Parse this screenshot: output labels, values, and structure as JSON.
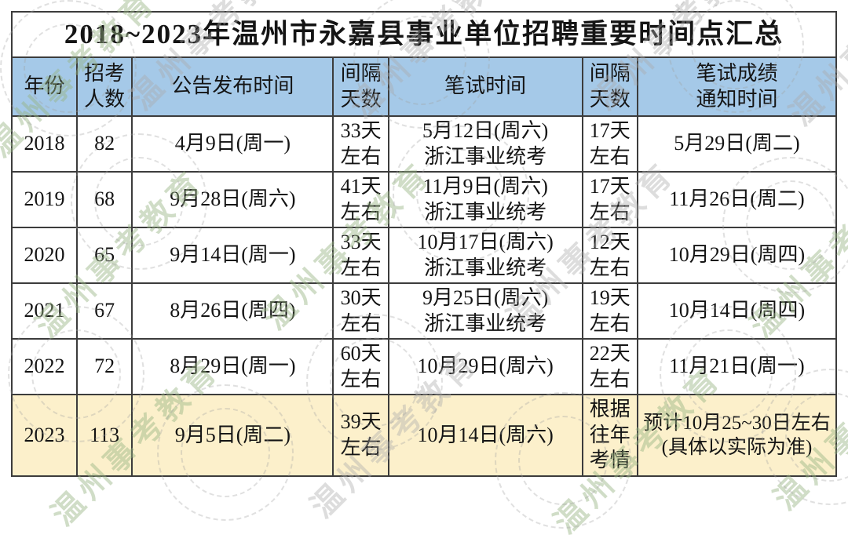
{
  "title": "2018~2023年温州市永嘉县事业单位招聘重要时间点汇总",
  "watermark_text": "温州事考教育",
  "colors": {
    "header_bg": "#a5c9e8",
    "highlight_bg": "#fcf0cb",
    "border": "#3c3c3c"
  },
  "table": {
    "headers": [
      "年份",
      "招考\n人数",
      "公告发布时间",
      "间隔\n天数",
      "笔试时间",
      "间隔\n天数",
      "笔试成绩\n通知时间"
    ],
    "rows": [
      {
        "year": "2018",
        "count": "82",
        "announce": "4月9日(周一)",
        "gap1": "33天\n左右",
        "exam": "5月12日(周六)\n浙江事业统考",
        "gap2": "17天\n左右",
        "notice": "5月29日(周二)",
        "highlight": false
      },
      {
        "year": "2019",
        "count": "68",
        "announce": "9月28日(周六)",
        "gap1": "41天\n左右",
        "exam": "11月9日(周六)\n浙江事业统考",
        "gap2": "17天\n左右",
        "notice": "11月26日(周二)",
        "highlight": false
      },
      {
        "year": "2020",
        "count": "65",
        "announce": "9月14日(周一)",
        "gap1": "33天\n左右",
        "exam": "10月17日(周六)\n浙江事业统考",
        "gap2": "12天\n左右",
        "notice": "10月29日(周四)",
        "highlight": false
      },
      {
        "year": "2021",
        "count": "67",
        "announce": "8月26日(周四)",
        "gap1": "30天\n左右",
        "exam": "9月25日(周六)\n浙江事业统考",
        "gap2": "19天\n左右",
        "notice": "10月14日(周四)",
        "highlight": false
      },
      {
        "year": "2022",
        "count": "72",
        "announce": "8月29日(周一)",
        "gap1": "60天\n左右",
        "exam": "10月29日(周六)",
        "gap2": "22天\n左右",
        "notice": "11月21日(周一)",
        "highlight": false
      },
      {
        "year": "2023",
        "count": "113",
        "announce": "9月5日(周二)",
        "gap1": "39天\n左右",
        "exam": "10月14日(周六)",
        "gap2": "根据\n往年\n考情",
        "notice": "预计10月25~30日左右\n(具体以实际为准)",
        "highlight": true
      }
    ]
  }
}
